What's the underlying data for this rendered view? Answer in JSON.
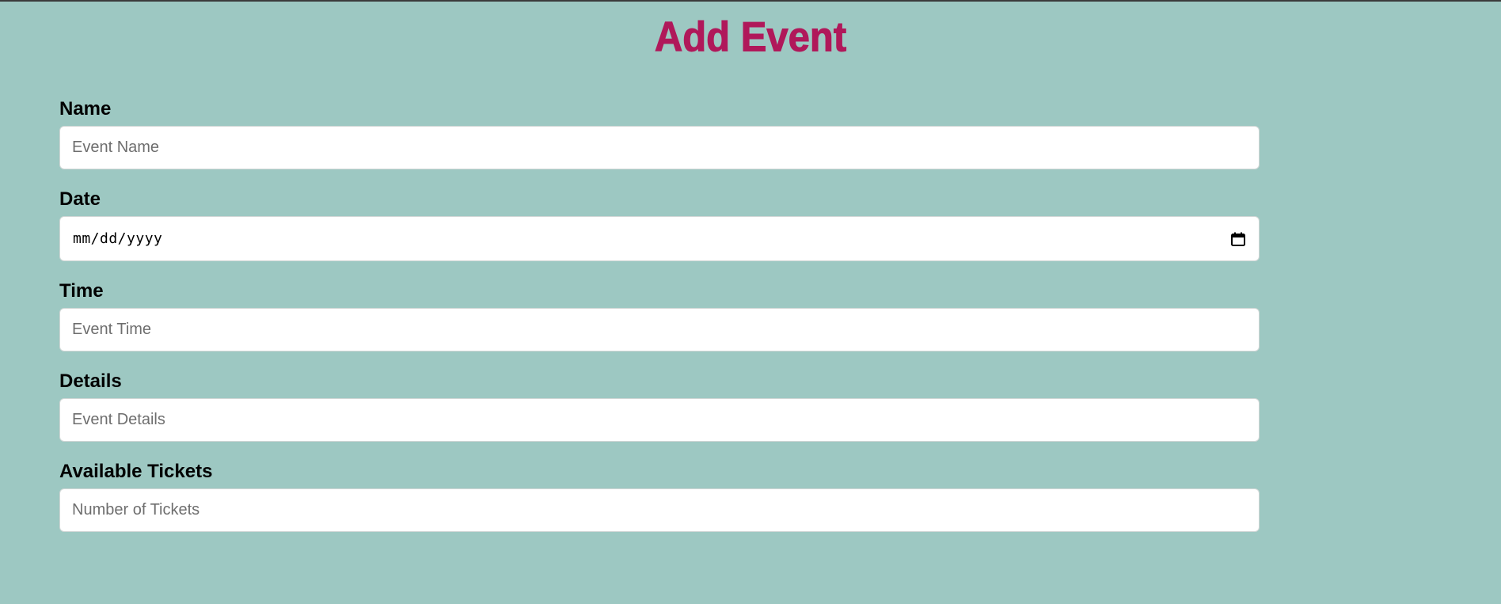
{
  "page": {
    "title": "Add Event"
  },
  "form": {
    "fields": [
      {
        "label": "Name",
        "placeholder": "Event Name",
        "value": ""
      },
      {
        "label": "Date",
        "display": "mm/dd/yyyy",
        "value": ""
      },
      {
        "label": "Time",
        "placeholder": "Event Time",
        "value": ""
      },
      {
        "label": "Details",
        "placeholder": "Event Details",
        "value": ""
      },
      {
        "label": "Available Tickets",
        "placeholder": "Number of Tickets",
        "value": ""
      }
    ]
  },
  "icons": {
    "date_picker": "calendar-icon"
  },
  "colors": {
    "background": "#9dc8c2",
    "title": "#b0185a"
  }
}
